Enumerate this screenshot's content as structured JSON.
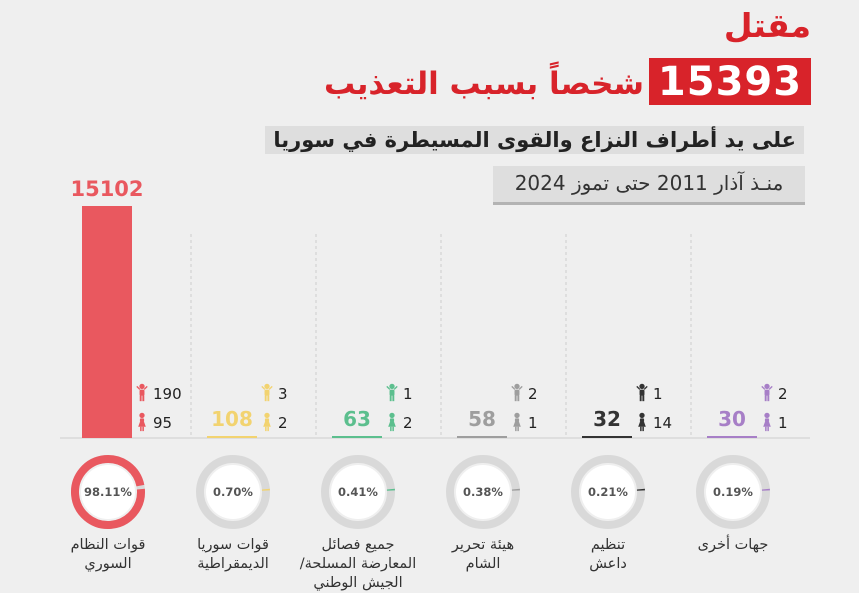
{
  "header": {
    "kill_word": "مقتل",
    "total": "15393",
    "total_caption": "شخصاً بسبب التعذيب",
    "subtitle": "على يد أطراف النزاع والقوى المسيطرة في سوريا",
    "period": "منـذ آذار 2011 حتى تموز 2024"
  },
  "chart_data": {
    "type": "bar",
    "categories": [
      "قوات النظام السوري",
      "قوات سوريا الديمقراطية",
      "جميع فصائل المعارضة المسلحة/ الجيش الوطني",
      "هيئة تحرير الشام",
      "تنظيم داعش",
      "جهات أخرى"
    ],
    "label_lines": [
      [
        "قوات النظام",
        "السوري"
      ],
      [
        "قوات سوريا",
        "الديمقراطية"
      ],
      [
        "جميع فصائل",
        "المعارضة المسلحة/",
        "الجيش الوطني"
      ],
      [
        "هيئة تحرير",
        "الشام"
      ],
      [
        "تنظيم",
        "داعش"
      ],
      [
        "جهات أخرى"
      ]
    ],
    "values": [
      15102,
      108,
      63,
      58,
      32,
      30
    ],
    "value_labels": [
      "15102",
      "108",
      "63",
      "58",
      "32",
      "30"
    ],
    "children": [
      190,
      3,
      1,
      2,
      1,
      2
    ],
    "women": [
      95,
      2,
      2,
      1,
      14,
      1
    ],
    "percentages": [
      98.11,
      0.7,
      0.41,
      0.38,
      0.21,
      0.19
    ],
    "percentage_labels": [
      "98.11%",
      "0.70%",
      "0.41%",
      "0.38%",
      "0.21%",
      "0.19%"
    ],
    "colors": [
      "#e9585f",
      "#f2d370",
      "#5cbf8e",
      "#9e9e9e",
      "#333333",
      "#a77fc7"
    ],
    "icons": [
      "child-icon",
      "woman-icon"
    ]
  }
}
